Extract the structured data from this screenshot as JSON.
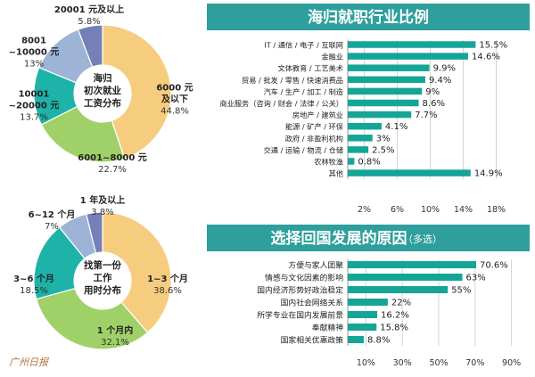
{
  "chart_data": [
    {
      "type": "pie",
      "title": "海归\n初次就业\n工资分布",
      "slices": [
        {
          "label": "6000 元\n及以下",
          "value": 44.8,
          "pct": "44.8%",
          "color": "#f6cc7e"
        },
        {
          "label": "6001~8000 元",
          "value": 22.7,
          "pct": "22.7%",
          "color": "#9fd168"
        },
        {
          "label": "10001\n~20000 元",
          "value": 13.7,
          "pct": "13.7%",
          "color": "#1db3a8"
        },
        {
          "label": "8001\n~10000 元",
          "value": 13.0,
          "pct": "13%",
          "color": "#9db4d6"
        },
        {
          "label": "20001 元及以上",
          "value": 5.8,
          "pct": "5.8%",
          "color": "#7580b8"
        }
      ]
    },
    {
      "type": "pie",
      "title": "找第一份\n工作\n用时分布",
      "slices": [
        {
          "label": "1~3 个月",
          "value": 38.6,
          "pct": "38.6%",
          "color": "#f6cc7e"
        },
        {
          "label": "1 个月内",
          "value": 32.1,
          "pct": "32.1%",
          "color": "#9fd168"
        },
        {
          "label": "3~6 个月",
          "value": 18.5,
          "pct": "18.5%",
          "color": "#1db3a8"
        },
        {
          "label": "6~12 个月",
          "value": 7.0,
          "pct": "7%",
          "color": "#9db4d6"
        },
        {
          "label": "1 年及以上",
          "value": 3.8,
          "pct": "3.8%",
          "color": "#7580b8"
        }
      ]
    },
    {
      "type": "bar",
      "orientation": "horizontal",
      "title": "海归就职行业比例",
      "categories": [
        "IT / 通信 / 电子 / 互联网",
        "金融业",
        "文体教育 / 工艺美术",
        "贸易 / 批发 / 零售 / 快速消费品",
        "汽车 / 生产 / 加工 / 制造",
        "商业服务（咨询 / 财会 / 法律 / 公关）",
        "房地产 / 建筑业",
        "能源 / 矿产 / 环保",
        "政府 / 非盈利机构",
        "交通 / 运输 / 物流 / 仓储",
        "农林牧渔",
        "其他"
      ],
      "values": [
        15.5,
        14.6,
        9.9,
        9.4,
        9.0,
        8.6,
        7.7,
        4.1,
        3.0,
        2.5,
        0.8,
        14.9
      ],
      "value_labels": [
        "15.5%",
        "14.6%",
        "9.9%",
        "9.4%",
        "9%",
        "8.6%",
        "7.7%",
        "4.1%",
        "3%",
        "2.5%",
        "0.8%",
        "14.9%"
      ],
      "xlim": [
        0,
        20
      ],
      "ticks": [
        2,
        6,
        10,
        14,
        18
      ],
      "tick_labels": [
        "2%",
        "6%",
        "10%",
        "14%",
        "18%"
      ],
      "grid": true
    },
    {
      "type": "bar",
      "orientation": "horizontal",
      "title": "选择回国发展的原因",
      "subtitle": "（多选）",
      "categories": [
        "方便与家人团聚",
        "情感与文化因素的影响",
        "国内经济形势好政治稳定",
        "国内社会网络关系",
        "所学专业在国内发展前景",
        "奉献精神",
        "国家相关优惠政策"
      ],
      "values": [
        70.6,
        63,
        55,
        22,
        16.2,
        15.8,
        8.8
      ],
      "value_labels": [
        "70.6%",
        "63%",
        "55%",
        "22%",
        "16.2%",
        "15.8%",
        "8.8%"
      ],
      "xlim": [
        0,
        100
      ],
      "ticks": [
        10,
        30,
        50,
        70,
        90
      ],
      "tick_labels": [
        "10%",
        "30%",
        "50%",
        "70%",
        "90%"
      ],
      "grid": true
    }
  ],
  "colors": {
    "bar": "#15a596",
    "header": "#2e9f9c",
    "grid": "#c9d9d3",
    "accent_text": "#a04c12"
  },
  "watermark": "广州日报"
}
